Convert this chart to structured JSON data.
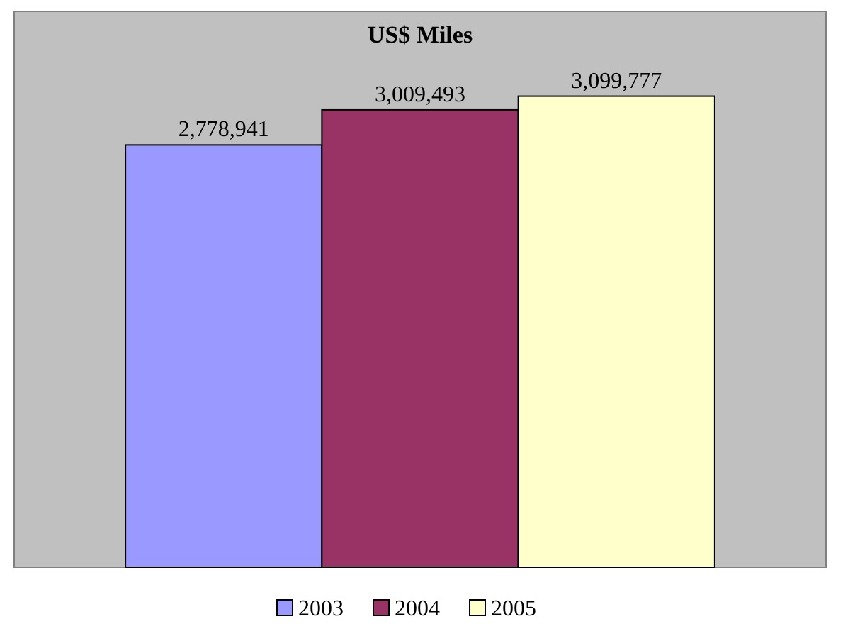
{
  "chart_data": {
    "type": "bar",
    "title": "US$ Miles",
    "categories": [
      null
    ],
    "series": [
      {
        "name": "2003",
        "color": "#9999ff",
        "values": [
          2778941
        ],
        "value_labels": [
          "2,778,941"
        ]
      },
      {
        "name": "2004",
        "color": "#993366",
        "values": [
          3009493
        ],
        "value_labels": [
          "3,009,493"
        ]
      },
      {
        "name": "2005",
        "color": "#ffffcc",
        "values": [
          3099777
        ],
        "value_labels": [
          "3,099,777"
        ]
      }
    ],
    "legend": "bottom"
  }
}
